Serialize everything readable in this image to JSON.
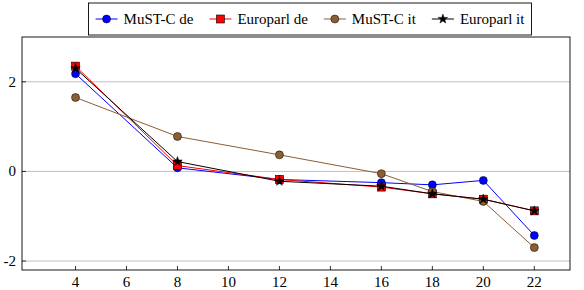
{
  "chart_data": {
    "type": "line",
    "x": [
      4,
      8,
      12,
      16,
      18,
      20,
      22
    ],
    "series": [
      {
        "name": "MuST-C de",
        "color": "#0000ff",
        "marker": "circle",
        "values": [
          2.18,
          0.08,
          -0.18,
          -0.25,
          -0.3,
          -0.2,
          -1.43
        ]
      },
      {
        "name": "Europarl de",
        "color": "#ff0000",
        "marker": "square",
        "values": [
          2.35,
          0.13,
          -0.18,
          -0.35,
          -0.5,
          -0.62,
          -0.88
        ]
      },
      {
        "name": "MuST-C it",
        "color": "#8c5e32",
        "marker": "circle",
        "values": [
          1.65,
          0.78,
          0.37,
          -0.05,
          -0.45,
          -0.67,
          -1.7
        ]
      },
      {
        "name": "Europarl it",
        "color": "#000000",
        "marker": "star",
        "values": [
          2.3,
          0.22,
          -0.22,
          -0.33,
          -0.5,
          -0.62,
          -0.88
        ]
      }
    ],
    "xlim": [
      1.9,
      23.4
    ],
    "xticks": [
      4,
      6,
      8,
      10,
      12,
      14,
      16,
      18,
      20,
      22
    ],
    "ylim": [
      -2.2,
      3
    ],
    "yticks": [
      -2,
      0,
      2
    ],
    "grid": "y",
    "legend": "top"
  }
}
